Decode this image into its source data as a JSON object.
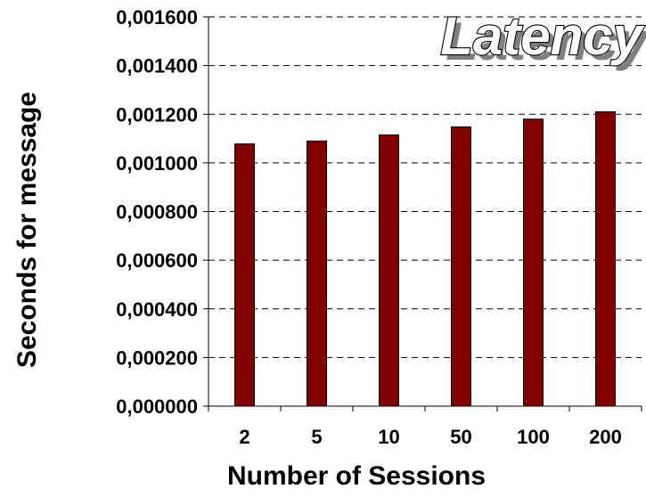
{
  "chart_data": {
    "type": "bar",
    "title": "Latency",
    "xlabel": "Number of Sessions",
    "ylabel": "Seconds for message",
    "categories": [
      "2",
      "5",
      "10",
      "50",
      "100",
      "200"
    ],
    "values": [
      0.001078,
      0.00109,
      0.001115,
      0.001148,
      0.00118,
      0.00121
    ],
    "ylim": [
      0,
      0.0016
    ],
    "yticks": [
      "0,000000",
      "0,000200",
      "0,000400",
      "0,000600",
      "0,000800",
      "0,001000",
      "0,001200",
      "0,001400",
      "0,001600"
    ],
    "ytick_values": [
      0,
      0.0002,
      0.0004,
      0.0006,
      0.0008,
      0.001,
      0.0012,
      0.0014,
      0.0016
    ],
    "grid": "horizontal-dashed",
    "legend": "none",
    "colors": {
      "bar": "#800000",
      "bar_outline": "#000000",
      "grid": "#000000"
    }
  }
}
